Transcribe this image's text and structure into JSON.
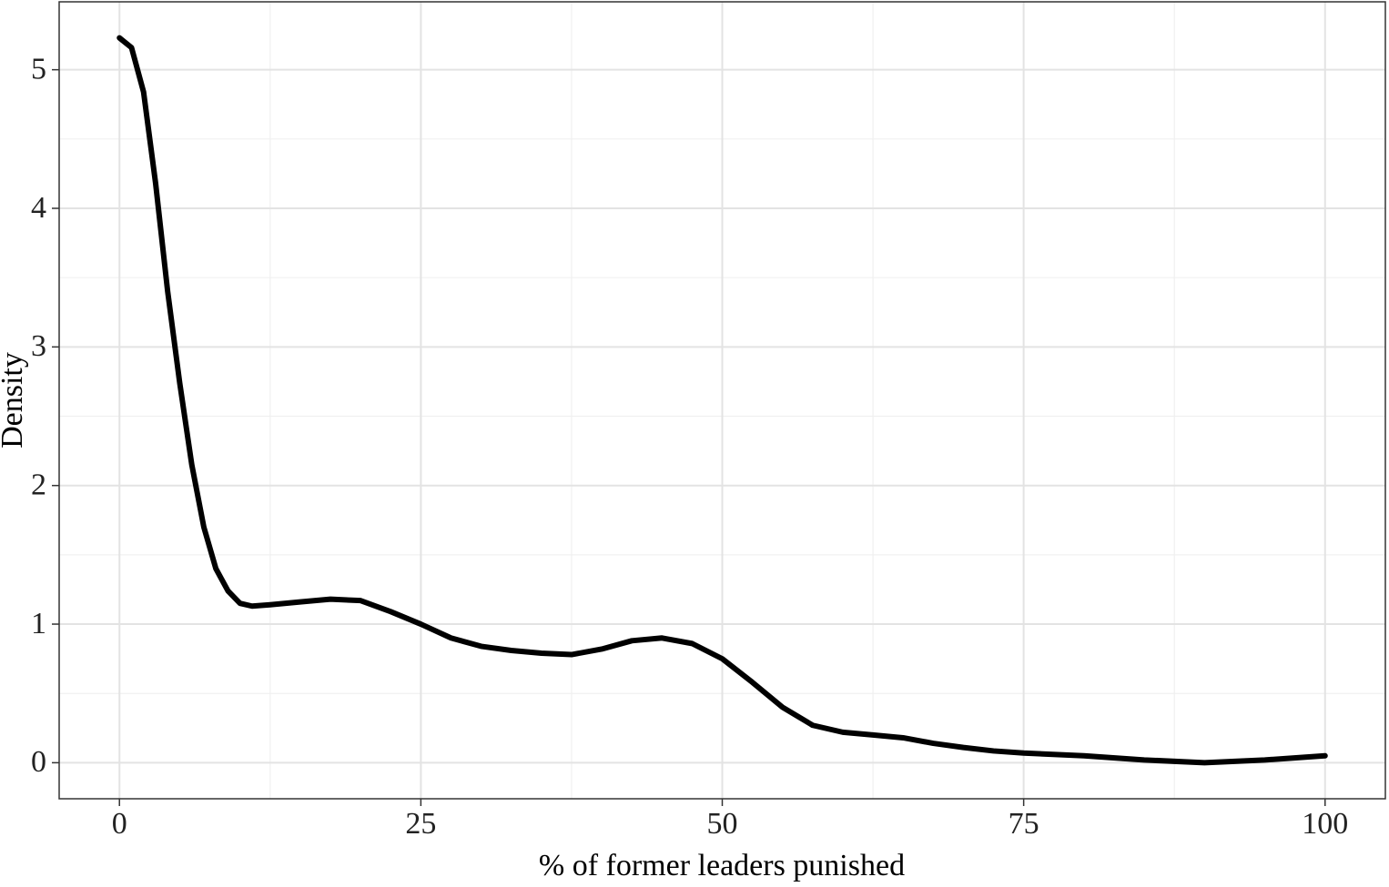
{
  "chart_data": {
    "type": "line",
    "x_label": "% of former leaders punished",
    "y_label": "Density",
    "x": [
      0,
      1,
      2,
      3,
      4,
      5,
      6,
      7,
      8,
      9,
      10,
      11,
      12.5,
      15,
      17.5,
      20,
      22.5,
      25,
      27.5,
      30,
      32.5,
      35,
      37.5,
      40,
      42.5,
      45,
      47.5,
      50,
      52.5,
      55,
      57.5,
      60,
      62.5,
      65,
      67.5,
      70,
      72.5,
      75,
      80,
      85,
      90,
      95,
      100
    ],
    "series": [
      {
        "color": "#000000",
        "values": [
          5.23,
          5.16,
          4.84,
          4.18,
          3.4,
          2.74,
          2.15,
          1.7,
          1.4,
          1.24,
          1.15,
          1.13,
          1.14,
          1.16,
          1.18,
          1.17,
          1.09,
          1.0,
          0.9,
          0.84,
          0.81,
          0.79,
          0.78,
          0.82,
          0.88,
          0.9,
          0.86,
          0.75,
          0.58,
          0.4,
          0.27,
          0.22,
          0.2,
          0.18,
          0.14,
          0.11,
          0.085,
          0.07,
          0.05,
          0.02,
          0.0,
          0.02,
          0.05
        ]
      }
    ],
    "xlim": [
      -5,
      105
    ],
    "xticks": [
      0,
      25,
      50,
      75,
      100
    ],
    "xminorticks": [
      12.5,
      37.5,
      62.5,
      87.5
    ],
    "ylim": [
      -0.26,
      5.49
    ],
    "yticks": [
      0,
      1,
      2,
      3,
      4,
      5
    ],
    "yminorticks": [
      0.5,
      1.5,
      2.5,
      3.5,
      4.5
    ],
    "grid": true
  }
}
